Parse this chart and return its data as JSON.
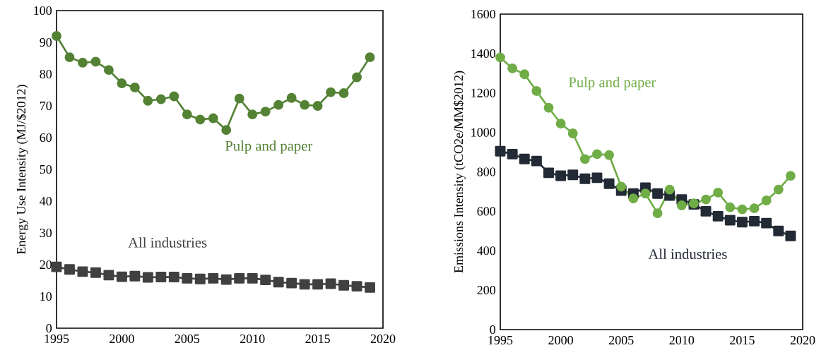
{
  "chart_data": [
    {
      "type": "line",
      "ylabel": "Energy Use Intensity (MJ/$2012)",
      "x": [
        1995,
        1996,
        1997,
        1998,
        1999,
        2000,
        2001,
        2002,
        2003,
        2004,
        2005,
        2006,
        2007,
        2008,
        2009,
        2010,
        2011,
        2012,
        2013,
        2014,
        2015,
        2016,
        2017,
        2018,
        2019
      ],
      "xlim": [
        1995,
        2020
      ],
      "xticks": [
        1995,
        2000,
        2005,
        2010,
        2015,
        2020
      ],
      "ylim": [
        0,
        100
      ],
      "yticks": [
        0,
        10,
        20,
        30,
        40,
        50,
        60,
        70,
        80,
        90,
        100
      ],
      "line_style": "solid",
      "series": [
        {
          "name": "Pulp and paper",
          "color": "#548235",
          "marker": "circle",
          "values": [
            92.0,
            85.3,
            83.6,
            83.9,
            81.3,
            77.1,
            75.8,
            71.6,
            72.1,
            73.0,
            67.3,
            65.7,
            66.1,
            62.4,
            72.3,
            67.3,
            68.2,
            70.3,
            72.5,
            70.3,
            70.0,
            74.3,
            74.0,
            79.0,
            85.3
          ]
        },
        {
          "name": "All industries",
          "color": "#404040",
          "marker": "square",
          "values": [
            19.3,
            18.5,
            17.8,
            17.5,
            16.7,
            16.2,
            16.4,
            16.0,
            16.1,
            16.1,
            15.7,
            15.5,
            15.7,
            15.3,
            15.7,
            15.7,
            15.2,
            14.5,
            14.2,
            13.8,
            13.8,
            14.0,
            13.5,
            13.2,
            12.8
          ]
        }
      ]
    },
    {
      "type": "line",
      "ylabel": "Emissions Intensity (tCO2e/MM$2012)",
      "x": [
        1995,
        1996,
        1997,
        1998,
        1999,
        2000,
        2001,
        2002,
        2003,
        2004,
        2005,
        2006,
        2007,
        2008,
        2009,
        2010,
        2011,
        2012,
        2013,
        2014,
        2015,
        2016,
        2017,
        2018,
        2019
      ],
      "xlim": [
        1995,
        2020
      ],
      "xticks": [
        1995,
        2000,
        2005,
        2010,
        2015,
        2020
      ],
      "ylim": [
        0,
        1600
      ],
      "yticks": [
        0,
        200,
        400,
        600,
        800,
        1000,
        1200,
        1400,
        1600
      ],
      "line_style": "solid",
      "series": [
        {
          "name": "Pulp and paper",
          "color": "#70ad47",
          "marker": "circle",
          "values": [
            1380,
            1325,
            1295,
            1210,
            1125,
            1045,
            995,
            865,
            890,
            885,
            725,
            665,
            690,
            590,
            710,
            630,
            640,
            660,
            695,
            620,
            610,
            615,
            655,
            710,
            780
          ]
        },
        {
          "name": "All industries",
          "color": "#222a35",
          "marker": "square",
          "values": [
            905,
            890,
            865,
            855,
            795,
            780,
            785,
            765,
            770,
            740,
            705,
            690,
            720,
            690,
            680,
            660,
            635,
            600,
            575,
            555,
            545,
            550,
            540,
            500,
            475
          ]
        }
      ]
    }
  ]
}
